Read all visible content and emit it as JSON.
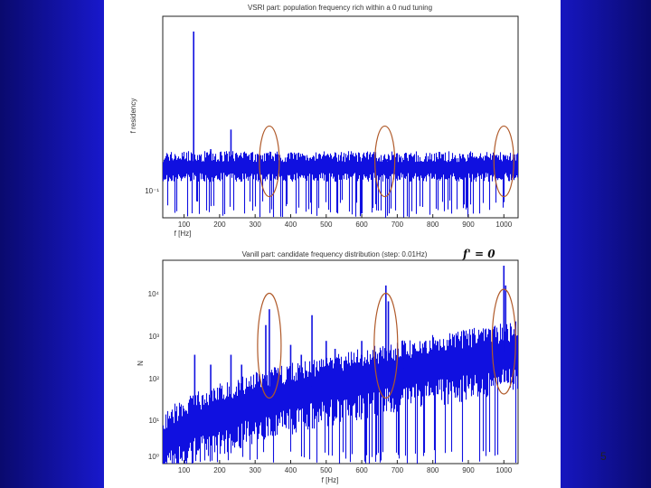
{
  "page_number": "5",
  "accent_colors": {
    "series": "#1010e0",
    "circle": "#b05a2a",
    "slide_bg": "#1a1ad8"
  },
  "chart_data": [
    {
      "type": "line",
      "title": "VSRI part: population frequency rich within a 0 nud tuning",
      "xlabel": "f [Hz]",
      "ylabel": "f residency",
      "xlim": [
        40,
        1040
      ],
      "x_ticks": [
        100,
        200,
        300,
        400,
        500,
        600,
        700,
        800,
        900,
        1000
      ],
      "x_tick_labels": [
        "100",
        "200",
        "300",
        "400",
        "500",
        "600",
        "700",
        "800",
        "900",
        "1000"
      ],
      "y_tick_labels": [
        "10⁻¹"
      ],
      "log_y": true,
      "grid": false,
      "legend": "none",
      "peaks": [
        {
          "x": 127,
          "v": 0.95
        },
        {
          "x": 175,
          "v": 0.35
        },
        {
          "x": 232,
          "v": 0.45
        },
        {
          "x": 262,
          "v": 0.3
        },
        {
          "x": 305,
          "v": 0.25
        },
        {
          "x": 330,
          "v": 0.28
        },
        {
          "x": 338,
          "v": 0.32
        },
        {
          "x": 345,
          "v": 0.26
        },
        {
          "x": 420,
          "v": 0.2
        },
        {
          "x": 520,
          "v": 0.18
        },
        {
          "x": 660,
          "v": 0.28
        },
        {
          "x": 672,
          "v": 0.3
        },
        {
          "x": 990,
          "v": 0.26
        },
        {
          "x": 1000,
          "v": 0.32
        }
      ],
      "circled_regions": [
        340,
        665,
        1000
      ]
    },
    {
      "type": "line",
      "title": "Vanill part: candidate frequency distribution (step: 0.01Hz)",
      "annotation": "f' = 0",
      "xlabel": "f [Hz]",
      "ylabel": "N",
      "xlim": [
        40,
        1040
      ],
      "x_ticks": [
        100,
        200,
        300,
        400,
        500,
        600,
        700,
        800,
        900,
        1000
      ],
      "x_tick_labels": [
        "100",
        "200",
        "300",
        "400",
        "500",
        "600",
        "700",
        "800",
        "900",
        "1000"
      ],
      "y_tick_labels": [
        "10⁴",
        "10³",
        "10²",
        "10¹",
        "10⁰"
      ],
      "log_y": true,
      "grid": false,
      "legend": "none",
      "peaks": [
        {
          "x": 130,
          "v": 0.55
        },
        {
          "x": 175,
          "v": 0.5
        },
        {
          "x": 232,
          "v": 0.55
        },
        {
          "x": 262,
          "v": 0.5
        },
        {
          "x": 330,
          "v": 0.7
        },
        {
          "x": 340,
          "v": 0.78
        },
        {
          "x": 400,
          "v": 0.6
        },
        {
          "x": 430,
          "v": 0.55
        },
        {
          "x": 460,
          "v": 0.75
        },
        {
          "x": 500,
          "v": 0.62
        },
        {
          "x": 525,
          "v": 0.58
        },
        {
          "x": 600,
          "v": 0.62
        },
        {
          "x": 668,
          "v": 0.9
        },
        {
          "x": 675,
          "v": 0.82
        },
        {
          "x": 720,
          "v": 0.6
        },
        {
          "x": 780,
          "v": 0.62
        },
        {
          "x": 860,
          "v": 0.62
        },
        {
          "x": 920,
          "v": 0.6
        },
        {
          "x": 1000,
          "v": 1.0
        },
        {
          "x": 1005,
          "v": 0.9
        }
      ],
      "circled_regions": [
        340,
        668,
        1000
      ]
    }
  ]
}
